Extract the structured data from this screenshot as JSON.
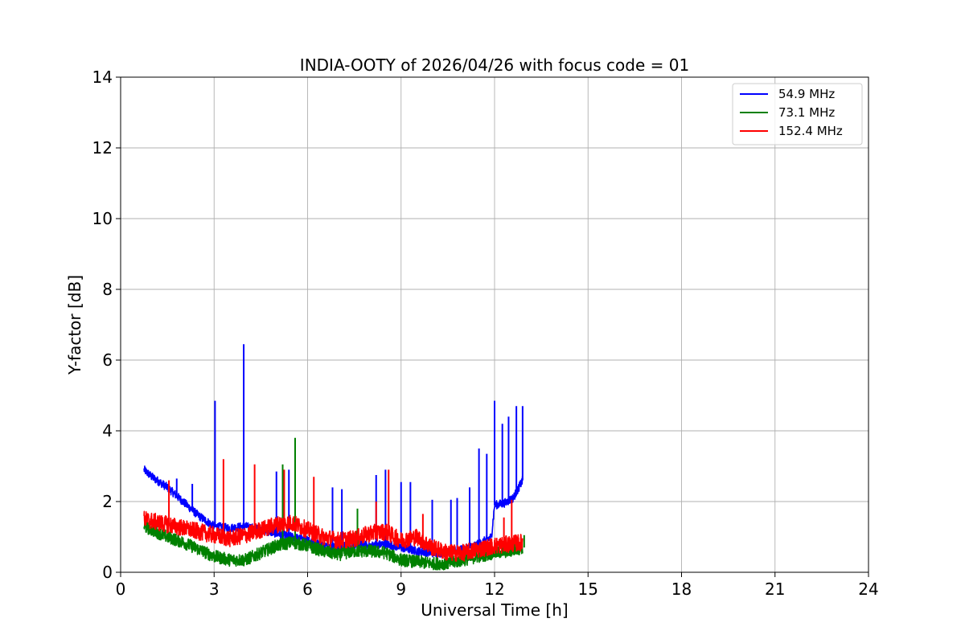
{
  "chart_data": {
    "type": "line",
    "title": "INDIA-OOTY of 2026/04/26 with focus code = 01",
    "xlabel": "Universal Time [h]",
    "ylabel": "Y-factor [dB]",
    "xlim": [
      0,
      24
    ],
    "ylim": [
      0,
      14
    ],
    "xticks": [
      0,
      3,
      6,
      9,
      12,
      15,
      18,
      21,
      24
    ],
    "yticks": [
      0,
      2,
      4,
      6,
      8,
      10,
      12,
      14
    ],
    "grid": true,
    "legend_position": "top-right",
    "series": [
      {
        "name": " 54.9 MHz",
        "color": "#0000ff",
        "x": [
          0.75,
          1.0,
          1.5,
          2.0,
          2.5,
          3.0,
          3.5,
          4.0,
          4.5,
          5.0,
          5.5,
          6.0,
          6.5,
          7.0,
          7.5,
          8.0,
          8.5,
          9.0,
          9.5,
          10.0,
          10.5,
          11.0,
          11.5,
          11.9,
          12.0,
          12.3,
          12.6,
          12.9
        ],
        "values": [
          2.9,
          2.7,
          2.4,
          2.0,
          1.6,
          1.3,
          1.25,
          1.3,
          1.2,
          1.1,
          1.0,
          0.9,
          0.75,
          0.7,
          0.8,
          0.75,
          0.8,
          0.7,
          0.6,
          0.55,
          0.55,
          0.65,
          0.8,
          1.0,
          1.9,
          1.95,
          2.1,
          2.6
        ],
        "spikes": [
          [
            1.8,
            2.65
          ],
          [
            2.3,
            2.5
          ],
          [
            3.03,
            4.85
          ],
          [
            3.95,
            6.45
          ],
          [
            5.0,
            2.85
          ],
          [
            5.4,
            2.9
          ],
          [
            6.8,
            2.4
          ],
          [
            7.1,
            2.35
          ],
          [
            8.2,
            2.75
          ],
          [
            8.5,
            2.9
          ],
          [
            9.0,
            2.55
          ],
          [
            9.3,
            2.55
          ],
          [
            10.0,
            2.05
          ],
          [
            10.6,
            2.05
          ],
          [
            10.8,
            2.1
          ],
          [
            11.2,
            2.4
          ],
          [
            11.5,
            3.5
          ],
          [
            11.75,
            3.35
          ],
          [
            12.0,
            4.85
          ],
          [
            12.25,
            4.2
          ],
          [
            12.45,
            4.4
          ],
          [
            12.7,
            4.7
          ],
          [
            12.9,
            4.7
          ]
        ]
      },
      {
        "name": " 73.1 MHz",
        "color": "#008000",
        "x": [
          0.75,
          1.0,
          1.5,
          2.0,
          2.5,
          3.0,
          3.5,
          4.0,
          4.5,
          5.0,
          5.5,
          6.0,
          6.5,
          7.0,
          7.5,
          8.0,
          8.5,
          9.0,
          9.5,
          10.0,
          10.5,
          11.0,
          11.5,
          12.0,
          12.5,
          12.9
        ],
        "values": [
          1.3,
          1.2,
          1.0,
          0.85,
          0.65,
          0.45,
          0.35,
          0.35,
          0.55,
          0.75,
          0.85,
          0.75,
          0.6,
          0.5,
          0.6,
          0.6,
          0.55,
          0.35,
          0.3,
          0.25,
          0.25,
          0.35,
          0.45,
          0.55,
          0.6,
          0.7
        ],
        "spikes": [
          [
            5.2,
            3.05
          ],
          [
            5.6,
            3.8
          ],
          [
            7.6,
            1.8
          ],
          [
            12.95,
            1.05
          ]
        ]
      },
      {
        "name": " 152.4 MHz",
        "color": "#ff0000",
        "x": [
          0.75,
          1.0,
          1.5,
          2.0,
          2.5,
          3.0,
          3.5,
          4.0,
          4.5,
          5.0,
          5.5,
          6.0,
          6.5,
          7.0,
          7.5,
          8.0,
          8.5,
          9.0,
          9.5,
          10.0,
          10.5,
          11.0,
          11.5,
          12.0,
          12.5,
          12.9
        ],
        "values": [
          1.5,
          1.45,
          1.35,
          1.25,
          1.15,
          1.05,
          0.95,
          1.05,
          1.2,
          1.35,
          1.4,
          1.2,
          1.0,
          0.9,
          0.95,
          1.1,
          1.15,
          0.9,
          1.0,
          0.7,
          0.55,
          0.55,
          0.65,
          0.75,
          0.8,
          0.85
        ],
        "spikes": [
          [
            1.55,
            2.6
          ],
          [
            3.3,
            3.2
          ],
          [
            4.3,
            3.05
          ],
          [
            5.25,
            2.9
          ],
          [
            6.2,
            2.7
          ],
          [
            8.2,
            2.0
          ],
          [
            8.6,
            2.9
          ],
          [
            9.7,
            1.65
          ],
          [
            12.3,
            1.55
          ],
          [
            12.55,
            2.05
          ]
        ]
      }
    ]
  }
}
